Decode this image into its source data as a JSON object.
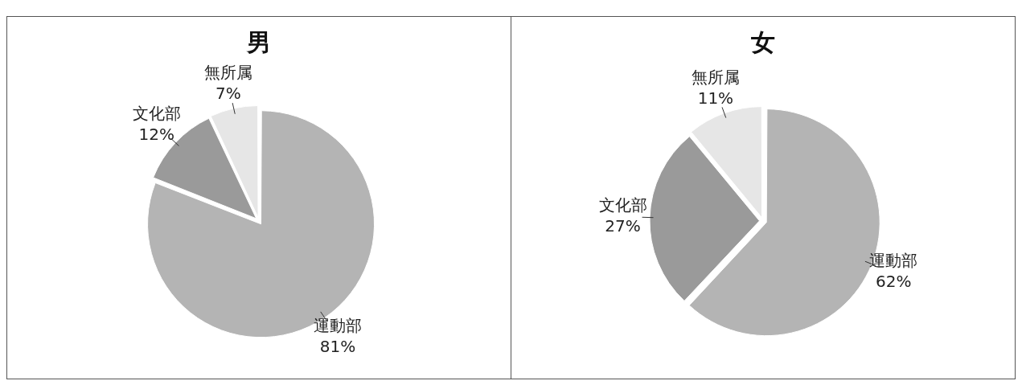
{
  "chart_data": [
    {
      "type": "pie",
      "title": "男",
      "categories": [
        "運動部",
        "文化部",
        "無所属"
      ],
      "values": [
        81,
        12,
        7
      ],
      "value_labels": [
        "81%",
        "12%",
        "7%"
      ],
      "colors": [
        "#b4b4b4",
        "#9a9a9a",
        "#e6e6e6"
      ]
    },
    {
      "type": "pie",
      "title": "女",
      "categories": [
        "運動部",
        "文化部",
        "無所属"
      ],
      "values": [
        62,
        27,
        11
      ],
      "value_labels": [
        "62%",
        "27%",
        "11%"
      ],
      "colors": [
        "#b4b4b4",
        "#9a9a9a",
        "#e6e6e6"
      ]
    }
  ]
}
